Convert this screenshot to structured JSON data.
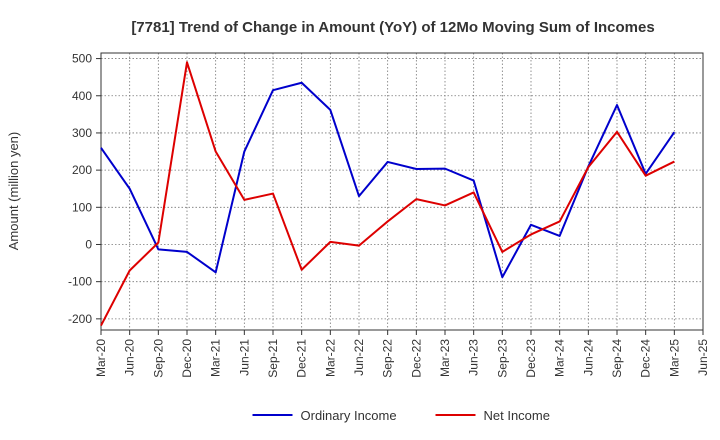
{
  "chart_data": {
    "type": "line",
    "title": "[7781]  Trend of Change in Amount (YoY) of 12Mo Moving Sum of Incomes",
    "xlabel": "",
    "ylabel": "Amount (million yen)",
    "ylim": [
      -230,
      515
    ],
    "yticks": [
      -200,
      -100,
      0,
      100,
      200,
      300,
      400,
      500
    ],
    "categories": [
      "Mar-20",
      "Jun-20",
      "Sep-20",
      "Dec-20",
      "Mar-21",
      "Jun-21",
      "Sep-21",
      "Dec-21",
      "Mar-22",
      "Jun-22",
      "Sep-22",
      "Dec-22",
      "Mar-23",
      "Jun-23",
      "Sep-23",
      "Dec-23",
      "Mar-24",
      "Jun-24",
      "Sep-24",
      "Dec-24",
      "Mar-25",
      "Jun-25"
    ],
    "grid": true,
    "legend_position": "bottom",
    "series": [
      {
        "name": "Ordinary Income",
        "color": "#0000cc",
        "values": [
          260,
          150,
          -13,
          -20,
          -75,
          250,
          415,
          435,
          362,
          130,
          222,
          203,
          204,
          172,
          -88,
          53,
          23,
          210,
          375,
          190,
          302,
          null
        ]
      },
      {
        "name": "Net Income",
        "color": "#dd0000",
        "values": [
          -218,
          -70,
          5,
          490,
          250,
          120,
          137,
          -68,
          7,
          -3,
          62,
          122,
          105,
          140,
          -20,
          27,
          62,
          208,
          303,
          185,
          223,
          null
        ]
      }
    ]
  }
}
